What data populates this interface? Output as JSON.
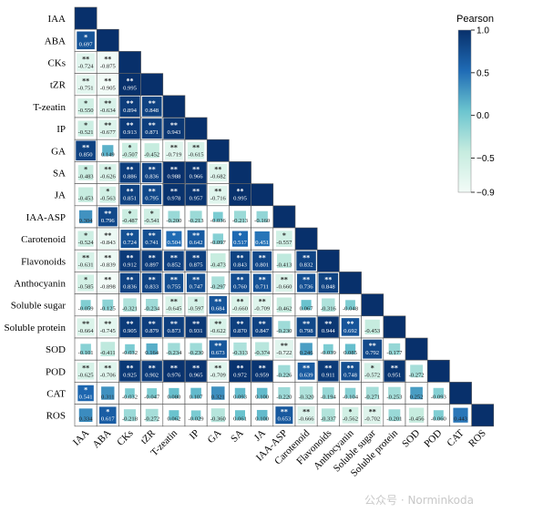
{
  "chart_data": {
    "type": "heatmap",
    "layout": "lower-triangle",
    "variables": [
      "IAA",
      "ABA",
      "CKs",
      "tZR",
      "T-zeatin",
      "IP",
      "GA",
      "SA",
      "JA",
      "IAA-ASP",
      "Carotenoid",
      "Flavonoids",
      "Anthocyanin",
      "Soluble sugar",
      "Soluble protein",
      "SOD",
      "POD",
      "CAT",
      "ROS"
    ],
    "rows": [
      [],
      [
        {
          "v": "0.697",
          "s": "*"
        }
      ],
      [
        {
          "v": "-0.724",
          "s": "**"
        },
        {
          "v": "-0.875",
          "s": "**"
        }
      ],
      [
        {
          "v": "-0.751",
          "s": "**"
        },
        {
          "v": "-0.905",
          "s": "**"
        },
        {
          "v": "0.995",
          "s": "**"
        }
      ],
      [
        {
          "v": "-0.550",
          "s": "*"
        },
        {
          "v": "-0.634",
          "s": "**"
        },
        {
          "v": "0.894",
          "s": "**"
        },
        {
          "v": "0.848",
          "s": "**"
        }
      ],
      [
        {
          "v": "-0.521",
          "s": "*"
        },
        {
          "v": "-0.677",
          "s": "**"
        },
        {
          "v": "0.913",
          "s": "**"
        },
        {
          "v": "0.871",
          "s": "**"
        },
        {
          "v": "0.943",
          "s": "**"
        }
      ],
      [
        {
          "v": "0.850",
          "s": "**"
        },
        {
          "v": "0.149",
          "s": ""
        },
        {
          "v": "-0.507",
          "s": "*"
        },
        {
          "v": "-0.452",
          "s": ""
        },
        {
          "v": "-0.719",
          "s": "**"
        },
        {
          "v": "-0.615",
          "s": "**"
        }
      ],
      [
        {
          "v": "-0.483",
          "s": "*"
        },
        {
          "v": "-0.626",
          "s": "**"
        },
        {
          "v": "0.886",
          "s": "**"
        },
        {
          "v": "0.836",
          "s": "**"
        },
        {
          "v": "0.988",
          "s": "**"
        },
        {
          "v": "0.966",
          "s": "**"
        },
        {
          "v": "-0.682",
          "s": "**"
        }
      ],
      [
        {
          "v": "-0.453",
          "s": ""
        },
        {
          "v": "-0.563",
          "s": "*"
        },
        {
          "v": "0.851",
          "s": "**"
        },
        {
          "v": "0.795",
          "s": "**"
        },
        {
          "v": "0.978",
          "s": "**"
        },
        {
          "v": "0.957",
          "s": "**"
        },
        {
          "v": "-0.716",
          "s": "**"
        },
        {
          "v": "0.995",
          "s": "**"
        }
      ],
      [
        {
          "v": "0.304",
          "s": ""
        },
        {
          "v": "0.796",
          "s": "**"
        },
        {
          "v": "-0.487",
          "s": "*"
        },
        {
          "v": "-0.541",
          "s": "*"
        },
        {
          "v": "-0.200",
          "s": ""
        },
        {
          "v": "-0.213",
          "s": ""
        },
        {
          "v": "-0.036",
          "s": ""
        },
        {
          "v": "-0.213",
          "s": ""
        },
        {
          "v": "-0.160",
          "s": ""
        }
      ],
      [
        {
          "v": "-0.524",
          "s": "*"
        },
        {
          "v": "-0.843",
          "s": "**"
        },
        {
          "v": "0.724",
          "s": "**"
        },
        {
          "v": "0.741",
          "s": "**"
        },
        {
          "v": "0.504",
          "s": "*"
        },
        {
          "v": "0.642",
          "s": "**"
        },
        {
          "v": "-0.097",
          "s": ""
        },
        {
          "v": "0.517",
          "s": "*"
        },
        {
          "v": "0.451",
          "s": ""
        },
        {
          "v": "-0.557",
          "s": "*"
        }
      ],
      [
        {
          "v": "-0.631",
          "s": "**"
        },
        {
          "v": "-0.839",
          "s": "**"
        },
        {
          "v": "0.912",
          "s": "**"
        },
        {
          "v": "0.897",
          "s": "**"
        },
        {
          "v": "0.852",
          "s": "**"
        },
        {
          "v": "0.875",
          "s": "**"
        },
        {
          "v": "-0.473",
          "s": ""
        },
        {
          "v": "0.843",
          "s": "**"
        },
        {
          "v": "0.801",
          "s": "**"
        },
        {
          "v": "-0.413",
          "s": ""
        },
        {
          "v": "0.832",
          "s": "**"
        }
      ],
      [
        {
          "v": "-0.585",
          "s": "*"
        },
        {
          "v": "-0.898",
          "s": "**"
        },
        {
          "v": "0.836",
          "s": "**"
        },
        {
          "v": "0.833",
          "s": "**"
        },
        {
          "v": "0.755",
          "s": "**"
        },
        {
          "v": "0.747",
          "s": "**"
        },
        {
          "v": "-0.297",
          "s": ""
        },
        {
          "v": "0.760",
          "s": "**"
        },
        {
          "v": "0.711",
          "s": "**"
        },
        {
          "v": "-0.660",
          "s": "**"
        },
        {
          "v": "0.736",
          "s": "**"
        },
        {
          "v": "0.848",
          "s": "**"
        }
      ],
      [
        {
          "v": "-0.059",
          "s": ""
        },
        {
          "v": "-0.125",
          "s": ""
        },
        {
          "v": "-0.321",
          "s": ""
        },
        {
          "v": "-0.234",
          "s": ""
        },
        {
          "v": "-0.645",
          "s": "**"
        },
        {
          "v": "-0.597",
          "s": "*"
        },
        {
          "v": "0.684",
          "s": "**"
        },
        {
          "v": "-0.660",
          "s": "**"
        },
        {
          "v": "-0.709",
          "s": "**"
        },
        {
          "v": "-0.462",
          "s": ""
        },
        {
          "v": "0.067",
          "s": ""
        },
        {
          "v": "-0.316",
          "s": ""
        },
        {
          "v": "-0.048",
          "s": ""
        }
      ],
      [
        {
          "v": "-0.664",
          "s": "**"
        },
        {
          "v": "-0.745",
          "s": "**"
        },
        {
          "v": "0.905",
          "s": "**"
        },
        {
          "v": "0.879",
          "s": "**"
        },
        {
          "v": "0.873",
          "s": "**"
        },
        {
          "v": "0.931",
          "s": "**"
        },
        {
          "v": "-0.622",
          "s": "**"
        },
        {
          "v": "0.870",
          "s": "**"
        },
        {
          "v": "0.847",
          "s": "**"
        },
        {
          "v": "-0.230",
          "s": ""
        },
        {
          "v": "0.798",
          "s": "**"
        },
        {
          "v": "0.944",
          "s": "**"
        },
        {
          "v": "0.692",
          "s": "**"
        },
        {
          "v": "-0.453",
          "s": ""
        }
      ],
      [
        {
          "v": "-0.101",
          "s": ""
        },
        {
          "v": "-0.411",
          "s": ""
        },
        {
          "v": "-0.032",
          "s": ""
        },
        {
          "v": "0.164",
          "s": ""
        },
        {
          "v": "-0.234",
          "s": ""
        },
        {
          "v": "-0.230",
          "s": ""
        },
        {
          "v": "0.673",
          "s": "**"
        },
        {
          "v": "-0.313",
          "s": ""
        },
        {
          "v": "-0.374",
          "s": ""
        },
        {
          "v": "-0.722",
          "s": "**"
        },
        {
          "v": "0.246",
          "s": ""
        },
        {
          "v": "-0.039",
          "s": ""
        },
        {
          "v": "0.085",
          "s": ""
        },
        {
          "v": "0.792",
          "s": "**"
        },
        {
          "v": "-0.177",
          "s": ""
        }
      ],
      [
        {
          "v": "-0.625",
          "s": "**"
        },
        {
          "v": "-0.706",
          "s": "**"
        },
        {
          "v": "0.925",
          "s": "**"
        },
        {
          "v": "0.902",
          "s": "**"
        },
        {
          "v": "0.976",
          "s": "**"
        },
        {
          "v": "0.965",
          "s": "**"
        },
        {
          "v": "-0.709",
          "s": "**"
        },
        {
          "v": "0.972",
          "s": "**"
        },
        {
          "v": "0.959",
          "s": "**"
        },
        {
          "v": "-0.226",
          "s": ""
        },
        {
          "v": "0.639",
          "s": "**"
        },
        {
          "v": "0.911",
          "s": "**"
        },
        {
          "v": "0.748",
          "s": "**"
        },
        {
          "v": "-0.572",
          "s": "*"
        },
        {
          "v": "0.951",
          "s": "**"
        },
        {
          "v": "-0.272",
          "s": ""
        }
      ],
      [
        {
          "v": "0.541",
          "s": "*"
        },
        {
          "v": "0.311",
          "s": ""
        },
        {
          "v": "-0.032",
          "s": ""
        },
        {
          "v": "-0.047",
          "s": ""
        },
        {
          "v": "0.080",
          "s": ""
        },
        {
          "v": "0.107",
          "s": ""
        },
        {
          "v": "0.321",
          "s": ""
        },
        {
          "v": "0.093",
          "s": ""
        },
        {
          "v": "0.100",
          "s": ""
        },
        {
          "v": "-0.220",
          "s": ""
        },
        {
          "v": "-0.320",
          "s": ""
        },
        {
          "v": "-0.194",
          "s": ""
        },
        {
          "v": "-0.104",
          "s": ""
        },
        {
          "v": "-0.271",
          "s": ""
        },
        {
          "v": "-0.253",
          "s": ""
        },
        {
          "v": "0.252",
          "s": ""
        },
        {
          "v": "-0.093",
          "s": ""
        }
      ],
      [
        {
          "v": "0.334",
          "s": ""
        },
        {
          "v": "0.617",
          "s": "*"
        },
        {
          "v": "-0.218",
          "s": ""
        },
        {
          "v": "-0.272",
          "s": ""
        },
        {
          "v": "0.062",
          "s": ""
        },
        {
          "v": "-0.029",
          "s": ""
        },
        {
          "v": "-0.360",
          "s": ""
        },
        {
          "v": "0.061",
          "s": ""
        },
        {
          "v": "0.100",
          "s": ""
        },
        {
          "v": "0.653",
          "s": "**"
        },
        {
          "v": "-0.666",
          "s": "**"
        },
        {
          "v": "-0.337",
          "s": ""
        },
        {
          "v": "-0.562",
          "s": "*"
        },
        {
          "v": "-0.702",
          "s": "**"
        },
        {
          "v": "-0.201",
          "s": ""
        },
        {
          "v": "-0.456",
          "s": ""
        },
        {
          "v": "-0.060",
          "s": ""
        },
        {
          "v": "0.443",
          "s": ""
        }
      ]
    ],
    "colorbar": {
      "title": "Pearson",
      "ticks": [
        "1.0",
        "0.5",
        "0.0",
        "−0.5",
        "−0.9"
      ],
      "range": [
        -0.9,
        1.0
      ]
    },
    "diagonal_color": "#08306b"
  },
  "watermark": "公众号 · Norminkoda"
}
